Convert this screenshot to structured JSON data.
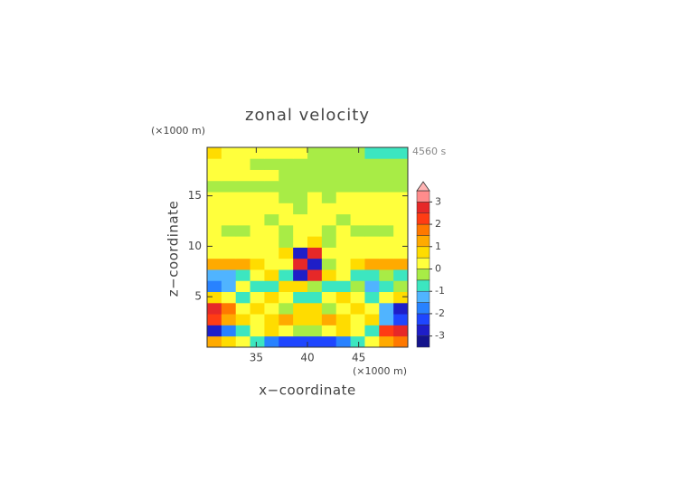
{
  "chart_data": {
    "type": "contour",
    "title": "zonal velocity",
    "x_label": "x−coordinate",
    "y_label": "z−coordinate",
    "x_unit_label": "(×1000 m)",
    "y_unit_label": "(×1000 m)",
    "annotation": "4560 s",
    "xlim": [
      30.2,
      49.8
    ],
    "ylim": [
      0,
      19.8
    ],
    "xticks": [
      35,
      40,
      45
    ],
    "yticks": [
      5,
      10,
      15
    ],
    "x": [
      30.9,
      32.3,
      33.7,
      35.1,
      36.5,
      37.9,
      39.3,
      40.7,
      42.1,
      43.5,
      44.9,
      46.3,
      47.7,
      49.1
    ],
    "y": [
      0.55,
      1.65,
      2.75,
      3.85,
      4.95,
      6.05,
      7.15,
      8.25,
      9.35,
      10.45,
      11.55,
      12.65,
      13.75,
      14.85,
      15.95,
      17.05,
      18.15,
      19.25
    ],
    "z": [
      [
        1.2,
        0.8,
        0.2,
        -0.8,
        -1.8,
        -2.2,
        -2.3,
        -2.3,
        -2.2,
        -1.8,
        -0.8,
        0.3,
        1.2,
        1.8
      ],
      [
        -2.8,
        -2,
        -0.6,
        0.3,
        0.6,
        0.3,
        -0.2,
        -0.2,
        0.3,
        0.6,
        0.3,
        -0.6,
        2,
        2.8
      ],
      [
        2.2,
        1.2,
        0.7,
        0.2,
        0.8,
        1.2,
        0.6,
        0.6,
        1.2,
        0.8,
        0.2,
        0.7,
        -1.2,
        -2.2
      ],
      [
        2.6,
        1.5,
        0.3,
        0.7,
        0.2,
        -0.3,
        0.5,
        0.5,
        -0.3,
        0.2,
        0.7,
        0.3,
        -1.5,
        -2.6
      ],
      [
        0.6,
        0.3,
        -0.6,
        0.4,
        0.8,
        0.2,
        -0.6,
        -0.6,
        0.2,
        0.8,
        0.4,
        -0.6,
        0.3,
        0.6
      ],
      [
        -1.6,
        -1.2,
        0.3,
        -0.6,
        -0.8,
        0.6,
        0.8,
        -0.4,
        -0.9,
        -0.7,
        -0.2,
        -1.4,
        -0.6,
        -0.4
      ],
      [
        -1.4,
        -1.4,
        -0.8,
        0.2,
        0.6,
        -0.8,
        -2.6,
        2.6,
        0.8,
        0.2,
        -0.6,
        -0.8,
        -0.3,
        -0.6
      ],
      [
        1.2,
        1.3,
        1.0,
        0.6,
        0.3,
        0.2,
        2.8,
        -2.8,
        -0.3,
        0.4,
        0.7,
        1.0,
        1.2,
        1.2
      ],
      [
        0.2,
        0.3,
        0.2,
        0.1,
        0.3,
        0.6,
        -2.8,
        2.6,
        0.4,
        0.2,
        0.1,
        0.2,
        0.3,
        0.2
      ],
      [
        0.2,
        0.2,
        0.3,
        0.4,
        0.1,
        -0.2,
        0.4,
        0.6,
        -0.2,
        0.2,
        0.4,
        0.3,
        0.2,
        0.2
      ],
      [
        0.2,
        -0.2,
        -0.3,
        0.2,
        0.3,
        -0.2,
        0.2,
        0.3,
        -0.2,
        0.3,
        -0.3,
        -0.3,
        -0.1,
        0.2
      ],
      [
        0.2,
        0.1,
        0.2,
        0.3,
        -0.2,
        0.2,
        0.3,
        0.3,
        0.2,
        -0.2,
        0.3,
        0.2,
        0.1,
        0.2
      ],
      [
        0.1,
        0.2,
        0.2,
        0.1,
        0.3,
        0.2,
        -0.2,
        0.2,
        0.3,
        0.1,
        0.2,
        0.2,
        0.2,
        0.1
      ],
      [
        0.1,
        0.2,
        0.1,
        0.2,
        0.2,
        -0.2,
        -0.1,
        0.2,
        -0.2,
        0.2,
        0.1,
        0.2,
        0.1,
        0.1
      ],
      [
        -0.2,
        -0.2,
        -0.3,
        -0.2,
        -0.2,
        -0.1,
        -0.2,
        -0.3,
        -0.2,
        -0.2,
        -0.3,
        -0.2,
        -0.2,
        -0.2
      ],
      [
        0.2,
        0.3,
        0.2,
        0.2,
        0.1,
        -0.1,
        -0.2,
        -0.2,
        -0.2,
        -0.2,
        -0.3,
        -0.2,
        -0.2,
        -0.2
      ],
      [
        0.3,
        0.2,
        0.2,
        -0.1,
        -0.2,
        -0.2,
        -0.3,
        -0.2,
        -0.2,
        -0.3,
        -0.2,
        -0.2,
        -0.2,
        -0.2
      ],
      [
        0.6,
        0.3,
        0.2,
        0.2,
        0.2,
        0.3,
        0.2,
        -0.2,
        -0.3,
        -0.3,
        -0.4,
        -0.6,
        -0.8,
        -0.8
      ]
    ],
    "levels": [
      -3.5,
      -3,
      -2.5,
      -2,
      -1.5,
      -1,
      -0.5,
      0,
      0.5,
      1,
      1.5,
      2,
      2.5,
      3,
      3.5
    ],
    "colors": [
      "#14148c",
      "#1e1ec8",
      "#1e46ff",
      "#2882ff",
      "#50b4ff",
      "#3ce6c0",
      "#a8ec46",
      "#ffff3c",
      "#ffdc00",
      "#ffaa00",
      "#ff7800",
      "#ff3c14",
      "#e62828",
      "#ff8c8c"
    ],
    "extend_color": "#ffb4b4",
    "colorbar_ticks": [
      -3,
      -2,
      -1,
      0,
      1,
      2,
      3
    ]
  }
}
